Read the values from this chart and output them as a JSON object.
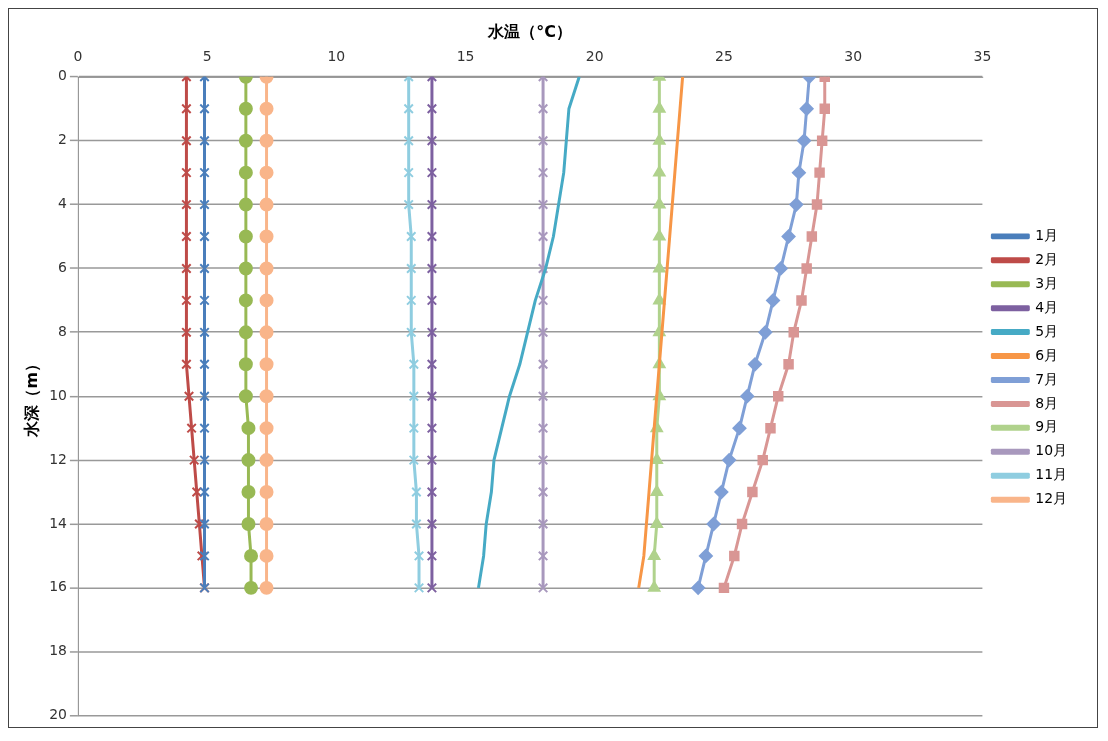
{
  "chart_data": {
    "type": "line",
    "xlabel": "水温（°C）",
    "ylabel": "水深（m）",
    "xlim": [
      0,
      35
    ],
    "xticks": [
      0,
      5,
      10,
      15,
      20,
      25,
      30,
      35
    ],
    "ylim": [
      20,
      0
    ],
    "yticks": [
      0,
      2,
      4,
      6,
      8,
      10,
      12,
      14,
      16,
      18,
      20
    ],
    "grid": "y",
    "legend": "right",
    "line_style": "solid",
    "series": [
      {
        "name": "1月",
        "color": "#4a7ebb",
        "marker": "cross",
        "x": [
          4.9,
          4.9,
          4.9,
          4.9,
          4.9,
          4.9,
          4.9,
          4.9,
          4.9,
          4.9,
          4.9,
          4.9,
          4.9,
          4.9,
          4.9,
          4.9,
          4.9
        ],
        "values": [
          0,
          1,
          2,
          3,
          4,
          5,
          6,
          7,
          8,
          9,
          10,
          11,
          12,
          13,
          14,
          15,
          16
        ]
      },
      {
        "name": "2月",
        "color": "#be4b48",
        "marker": "cross",
        "x": [
          4.2,
          4.2,
          4.2,
          4.2,
          4.2,
          4.2,
          4.2,
          4.2,
          4.2,
          4.2,
          4.3,
          4.4,
          4.5,
          4.6,
          4.7,
          4.8,
          4.9
        ],
        "values": [
          0,
          1,
          2,
          3,
          4,
          5,
          6,
          7,
          8,
          9,
          10,
          11,
          12,
          13,
          14,
          15,
          16
        ]
      },
      {
        "name": "3月",
        "color": "#98b954",
        "marker": "circle",
        "x": [
          6.5,
          6.5,
          6.5,
          6.5,
          6.5,
          6.5,
          6.5,
          6.5,
          6.5,
          6.5,
          6.5,
          6.6,
          6.6,
          6.6,
          6.6,
          6.7,
          6.7
        ],
        "values": [
          0,
          1,
          2,
          3,
          4,
          5,
          6,
          7,
          8,
          9,
          10,
          11,
          12,
          13,
          14,
          15,
          16
        ]
      },
      {
        "name": "4月",
        "color": "#7d60a0",
        "marker": "cross",
        "x": [
          13.7,
          13.7,
          13.7,
          13.7,
          13.7,
          13.7,
          13.7,
          13.7,
          13.7,
          13.7,
          13.7,
          13.7,
          13.7,
          13.7,
          13.7,
          13.7,
          13.7
        ],
        "values": [
          0,
          1,
          2,
          3,
          4,
          5,
          6,
          7,
          8,
          9,
          10,
          11,
          12,
          13,
          14,
          15,
          16
        ]
      },
      {
        "name": "5月",
        "color": "#46aac5",
        "marker": "none",
        "x": [
          19.4,
          19.0,
          18.9,
          18.8,
          18.6,
          18.4,
          18.1,
          17.7,
          17.4,
          17.1,
          16.7,
          16.4,
          16.1,
          16.0,
          15.8,
          15.7,
          15.5
        ],
        "values": [
          0,
          1,
          2,
          3,
          4,
          5,
          6,
          7,
          8,
          9,
          10,
          11,
          12,
          13,
          14,
          15,
          16
        ]
      },
      {
        "name": "6月",
        "color": "#f79646",
        "marker": "none",
        "x": [
          23.4,
          23.3,
          23.2,
          23.1,
          23.0,
          22.9,
          22.8,
          22.7,
          22.6,
          22.5,
          22.4,
          22.3,
          22.2,
          22.1,
          22.0,
          21.9,
          21.7
        ],
        "values": [
          0,
          1,
          2,
          3,
          4,
          5,
          6,
          7,
          8,
          9,
          10,
          11,
          12,
          13,
          14,
          15,
          16
        ]
      },
      {
        "name": "7月",
        "color": "#7f9fd6",
        "marker": "diamond",
        "x": [
          28.3,
          28.2,
          28.1,
          27.9,
          27.8,
          27.5,
          27.2,
          26.9,
          26.6,
          26.2,
          25.9,
          25.6,
          25.2,
          24.9,
          24.6,
          24.3,
          24.0
        ],
        "values": [
          0,
          1,
          2,
          3,
          4,
          5,
          6,
          7,
          8,
          9,
          10,
          11,
          12,
          13,
          14,
          15,
          16
        ]
      },
      {
        "name": "8月",
        "color": "#d99694",
        "marker": "square",
        "x": [
          28.9,
          28.9,
          28.8,
          28.7,
          28.6,
          28.4,
          28.2,
          28.0,
          27.7,
          27.5,
          27.1,
          26.8,
          26.5,
          26.1,
          25.7,
          25.4,
          25.0
        ],
        "values": [
          0,
          1,
          2,
          3,
          4,
          5,
          6,
          7,
          8,
          9,
          10,
          11,
          12,
          13,
          14,
          15,
          16
        ]
      },
      {
        "name": "9月",
        "color": "#b0d28c",
        "marker": "triangle",
        "x": [
          22.5,
          22.5,
          22.5,
          22.5,
          22.5,
          22.5,
          22.5,
          22.5,
          22.5,
          22.5,
          22.5,
          22.4,
          22.4,
          22.4,
          22.4,
          22.3,
          22.3
        ],
        "values": [
          0,
          1,
          2,
          3,
          4,
          5,
          6,
          7,
          8,
          9,
          10,
          11,
          12,
          13,
          14,
          15,
          16
        ]
      },
      {
        "name": "10月",
        "color": "#a898bd",
        "marker": "cross",
        "x": [
          18.0,
          18.0,
          18.0,
          18.0,
          18.0,
          18.0,
          18.0,
          18.0,
          18.0,
          18.0,
          18.0,
          18.0,
          18.0,
          18.0,
          18.0,
          18.0,
          18.0
        ],
        "values": [
          0,
          1,
          2,
          3,
          4,
          5,
          6,
          7,
          8,
          9,
          10,
          11,
          12,
          13,
          14,
          15,
          16
        ]
      },
      {
        "name": "11月",
        "color": "#8fcde0",
        "marker": "cross",
        "x": [
          12.8,
          12.8,
          12.8,
          12.8,
          12.8,
          12.9,
          12.9,
          12.9,
          12.9,
          13.0,
          13.0,
          13.0,
          13.0,
          13.1,
          13.1,
          13.2,
          13.2
        ],
        "values": [
          0,
          1,
          2,
          3,
          4,
          5,
          6,
          7,
          8,
          9,
          10,
          11,
          12,
          13,
          14,
          15,
          16
        ]
      },
      {
        "name": "12月",
        "color": "#f9b58a",
        "marker": "circle",
        "x": [
          7.3,
          7.3,
          7.3,
          7.3,
          7.3,
          7.3,
          7.3,
          7.3,
          7.3,
          7.3,
          7.3,
          7.3,
          7.3,
          7.3,
          7.3,
          7.3,
          7.3
        ],
        "values": [
          0,
          1,
          2,
          3,
          4,
          5,
          6,
          7,
          8,
          9,
          10,
          11,
          12,
          13,
          14,
          15,
          16
        ]
      }
    ]
  }
}
